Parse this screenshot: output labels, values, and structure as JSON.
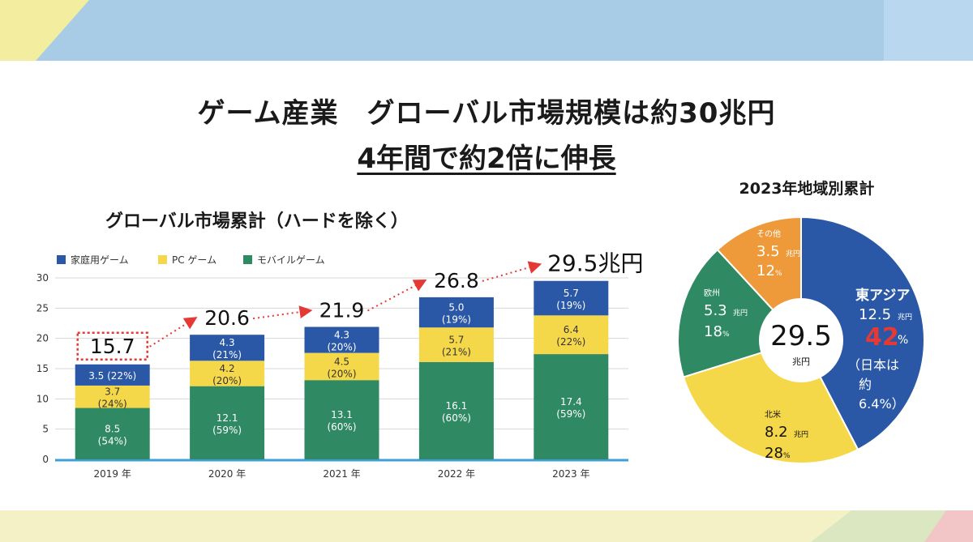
{
  "titles": {
    "main": "ゲーム産業　グローバル市場規模は約30兆円",
    "sub": "4年間で約2倍に伸長",
    "bar_chart": "グローバル市場累計（ハードを除く）",
    "pie_chart": "2023年地域別累計"
  },
  "colors": {
    "console": "#2b58a6",
    "pc": "#f5d84a",
    "mobile": "#2f8a63",
    "other": "#ee9a3a",
    "axis": "#3d9fd6",
    "highlight": "#e53935"
  },
  "chart_data": [
    {
      "type": "bar",
      "stacked": true,
      "title": "グローバル市場累計（ハードを除く）",
      "categories": [
        "2019 年",
        "2020 年",
        "2021 年",
        "2022 年",
        "2023 年"
      ],
      "ylim": [
        0,
        30
      ],
      "yticks": [
        "0",
        "5",
        "10",
        "15",
        "20",
        "25",
        "30"
      ],
      "series": [
        {
          "name": "モバイルゲーム",
          "key": "mobile",
          "values": [
            8.5,
            12.1,
            13.1,
            16.1,
            17.4
          ],
          "labels": [
            "8.5",
            "12.1",
            "13.1",
            "16.1",
            "17.4"
          ],
          "pcts": [
            "(54%)",
            "(59%)",
            "(60%)",
            "(60%)",
            "(59%)"
          ]
        },
        {
          "name": "PC ゲーム",
          "key": "pc",
          "values": [
            3.7,
            4.2,
            4.5,
            5.7,
            6.4
          ],
          "labels": [
            "3.7",
            "4.2",
            "4.5",
            "5.7",
            "6.4"
          ],
          "pcts": [
            "(24%)",
            "(20%)",
            "(20%)",
            "(21%)",
            "(22%)"
          ]
        },
        {
          "name": "家庭用ゲーム",
          "key": "console",
          "values": [
            3.5,
            4.3,
            4.3,
            5.0,
            5.7
          ],
          "labels": [
            "3.5",
            "4.3",
            "4.3",
            "5.0",
            "5.7"
          ],
          "pcts": [
            "(22%)",
            "(21%)",
            "(20%)",
            "(19%)",
            "(19%)"
          ]
        }
      ],
      "legend": [
        "家庭用ゲーム",
        "PC ゲーム",
        "モバイルゲーム"
      ],
      "totals": [
        15.7,
        20.6,
        21.9,
        26.8,
        29.5
      ],
      "total_labels": [
        "15.7",
        "20.6",
        "21.9",
        "26.8",
        "29.5兆円"
      ]
    },
    {
      "type": "pie",
      "title": "2023年地域別累計",
      "center_value": "29.5",
      "center_unit": "兆円",
      "slices": [
        {
          "name": "東アジア",
          "value": 12.5,
          "value_label": "12.5",
          "unit": "兆円",
          "pct_num": "42",
          "pct_sign": "%",
          "note": [
            "（日本は",
            "約",
            "6.4%）"
          ]
        },
        {
          "name": "北米",
          "value": 8.2,
          "value_label": "8.2",
          "unit": "兆円",
          "pct_num": "28",
          "pct_sign": "%"
        },
        {
          "name": "欧州",
          "value": 5.3,
          "value_label": "5.3",
          "unit": "兆円",
          "pct_num": "18",
          "pct_sign": "%"
        },
        {
          "name": "その他",
          "value": 3.5,
          "value_label": "3.5",
          "unit": "兆円",
          "pct_num": "12",
          "pct_sign": "%"
        }
      ]
    }
  ]
}
